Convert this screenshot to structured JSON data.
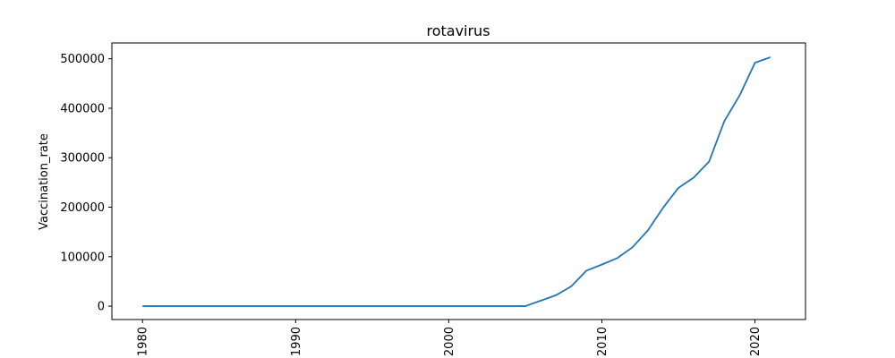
{
  "chart_data": {
    "type": "line",
    "title": "rotavirus",
    "xlabel": "",
    "ylabel": "Vaccination_rate",
    "xlim": [
      1978,
      2023.3
    ],
    "ylim": [
      -27000,
      532000
    ],
    "x_ticks": [
      1980,
      1990,
      2000,
      2010,
      2020
    ],
    "y_ticks": [
      0,
      100000,
      200000,
      300000,
      400000,
      500000
    ],
    "x_tick_rotation": -90,
    "grid": false,
    "legend": "none",
    "series": [
      {
        "color": "#1f77b4",
        "x": [
          1980,
          1981,
          1982,
          1983,
          1984,
          1985,
          1986,
          1987,
          1988,
          1989,
          1990,
          1991,
          1992,
          1993,
          1994,
          1995,
          1996,
          1997,
          1998,
          1999,
          2000,
          2001,
          2002,
          2003,
          2004,
          2005,
          2006,
          2007,
          2008,
          2009,
          2010,
          2011,
          2012,
          2013,
          2014,
          2015,
          2016,
          2017,
          2018,
          2019,
          2020,
          2021
        ],
        "y": [
          0,
          0,
          0,
          0,
          0,
          0,
          0,
          0,
          0,
          0,
          0,
          0,
          0,
          0,
          0,
          0,
          0,
          0,
          0,
          0,
          0,
          0,
          0,
          0,
          0,
          0,
          11000,
          22000,
          40000,
          72000,
          84000,
          97000,
          119000,
          153000,
          199000,
          239000,
          260000,
          292000,
          374000,
          426000,
          492000,
          503000
        ]
      }
    ]
  }
}
